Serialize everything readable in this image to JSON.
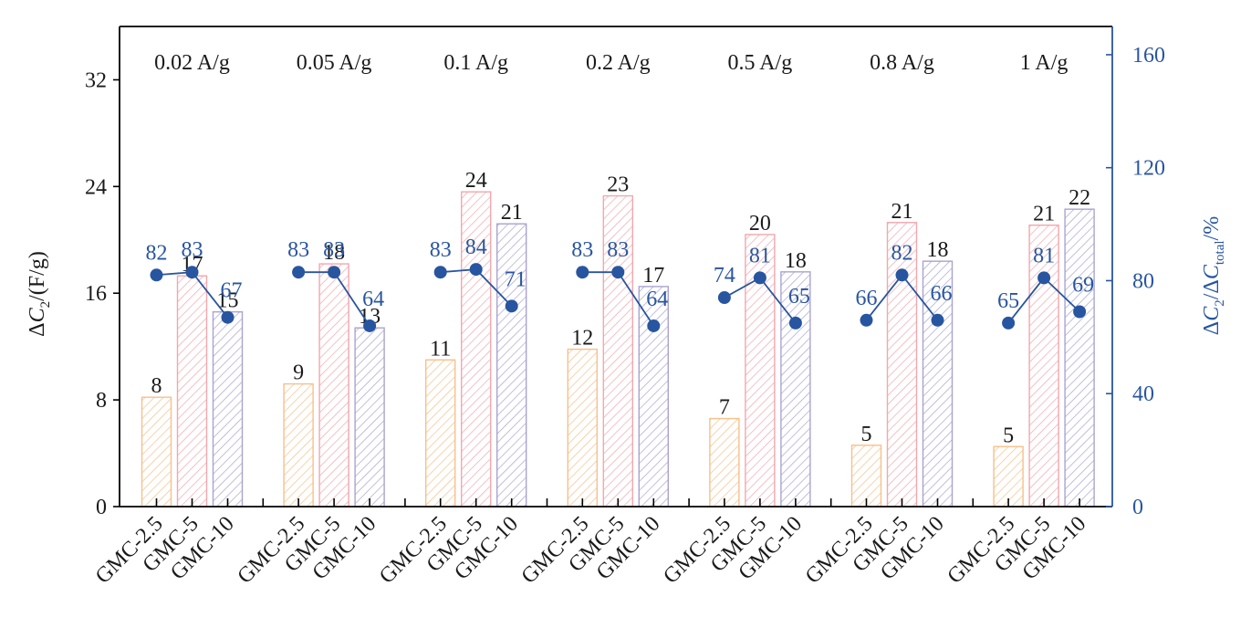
{
  "chart_data": {
    "type": "bar",
    "title": "",
    "xlabel": "",
    "ylabel": "ΔC2/(F/g)",
    "ylabel_parts": {
      "delta": "Δ",
      "var": "C",
      "sub": "2",
      "rest": "/(F/g)"
    },
    "y2label": "ΔC2/ΔCtotal/%",
    "y2label_parts": {
      "delta1": "Δ",
      "var1": "C",
      "sub1": "2",
      "slash": "/",
      "delta2": "Δ",
      "var2": "C",
      "sub2": "total",
      "rest": "/%"
    },
    "ylim": [
      0,
      36
    ],
    "y2lim": [
      0,
      170
    ],
    "yticks": [
      0,
      8,
      16,
      24,
      32
    ],
    "y2ticks": [
      0,
      40,
      80,
      120,
      160
    ],
    "grid": false,
    "groups": [
      "0.02 A/g",
      "0.05 A/g",
      "0.1 A/g",
      "0.2 A/g",
      "0.5 A/g",
      "0.8 A/g",
      "1 A/g"
    ],
    "categories": [
      "GMC-2.5",
      "GMC-5",
      "GMC-10"
    ],
    "series": [
      {
        "name": "GMC-2.5",
        "color": "#f7c08a",
        "values": [
          8.2,
          9.2,
          11.0,
          11.8,
          6.6,
          4.6,
          4.5
        ],
        "labels": [
          "8",
          "9",
          "11",
          "12",
          "7",
          "5",
          "5"
        ]
      },
      {
        "name": "GMC-5",
        "color": "#f2a7ad",
        "values": [
          17.3,
          18.2,
          23.6,
          23.3,
          20.4,
          21.3,
          21.1
        ],
        "labels": [
          "17",
          "18",
          "24",
          "23",
          "20",
          "21",
          "21"
        ]
      },
      {
        "name": "GMC-10",
        "color": "#a9a3d0",
        "values": [
          14.6,
          13.4,
          21.2,
          16.5,
          17.6,
          18.4,
          22.3
        ],
        "labels": [
          "15",
          "13",
          "21",
          "17",
          "18",
          "18",
          "22"
        ]
      }
    ],
    "ratio_series": {
      "name": "ΔC2/ΔCtotal (%)",
      "color": "#2855a0",
      "values": [
        [
          82,
          83,
          67
        ],
        [
          83,
          83,
          64
        ],
        [
          83,
          84,
          71
        ],
        [
          83,
          83,
          64
        ],
        [
          74,
          81,
          65
        ],
        [
          66,
          82,
          66
        ],
        [
          65,
          81,
          69
        ]
      ]
    },
    "colors": {
      "axis": "#000000",
      "right_axis": "#2855a0",
      "text": "#1a1a1a"
    }
  }
}
